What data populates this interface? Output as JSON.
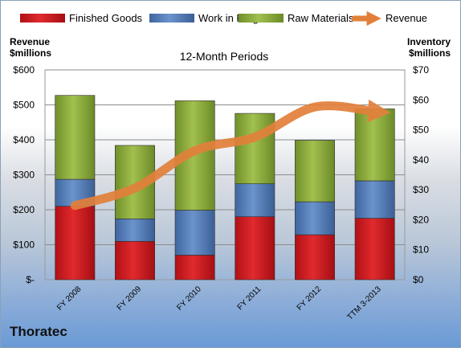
{
  "company": "Thoratec",
  "chart_data": {
    "type": "bar",
    "stacked": true,
    "title": "12-Month Periods",
    "categories": [
      "FY 2008",
      "FY 2009",
      "FY 2010",
      "FY 2011",
      "FY 2012",
      "TTM 3-2013"
    ],
    "y_left_label_line1": "Revenue",
    "y_left_label_line2": "$millions",
    "y_right_label_line1": "Inventory",
    "y_right_label_line2": "$millions",
    "y_left_ticks": [
      "$-",
      "$100",
      "$200",
      "$300",
      "$400",
      "$500",
      "$600"
    ],
    "y_right_ticks": [
      "$0",
      "$10",
      "$20",
      "$30",
      "$40",
      "$50",
      "$60",
      "$70"
    ],
    "ylim_left": [
      0,
      600
    ],
    "ylim_right": [
      0,
      70
    ],
    "grid": true,
    "legend_position": "top",
    "series": [
      {
        "name": "Finished Goods",
        "axis": "right",
        "color": "#c0151b",
        "values": [
          24.5,
          12.8,
          8.2,
          21,
          15,
          20.5
        ]
      },
      {
        "name": "Work in Progress",
        "axis": "right",
        "color": "#4f7ab8",
        "values": [
          9,
          7.5,
          15,
          11,
          11,
          12.5
        ]
      },
      {
        "name": "Raw Materials",
        "axis": "right",
        "color": "#8fae3b",
        "values": [
          28,
          24.5,
          36.5,
          23.5,
          20.5,
          24
        ]
      },
      {
        "name": "Revenue",
        "axis": "left",
        "type": "line",
        "color": "#e2803a",
        "values": [
          212,
          262,
          369,
          408,
          494,
          481
        ]
      }
    ]
  }
}
